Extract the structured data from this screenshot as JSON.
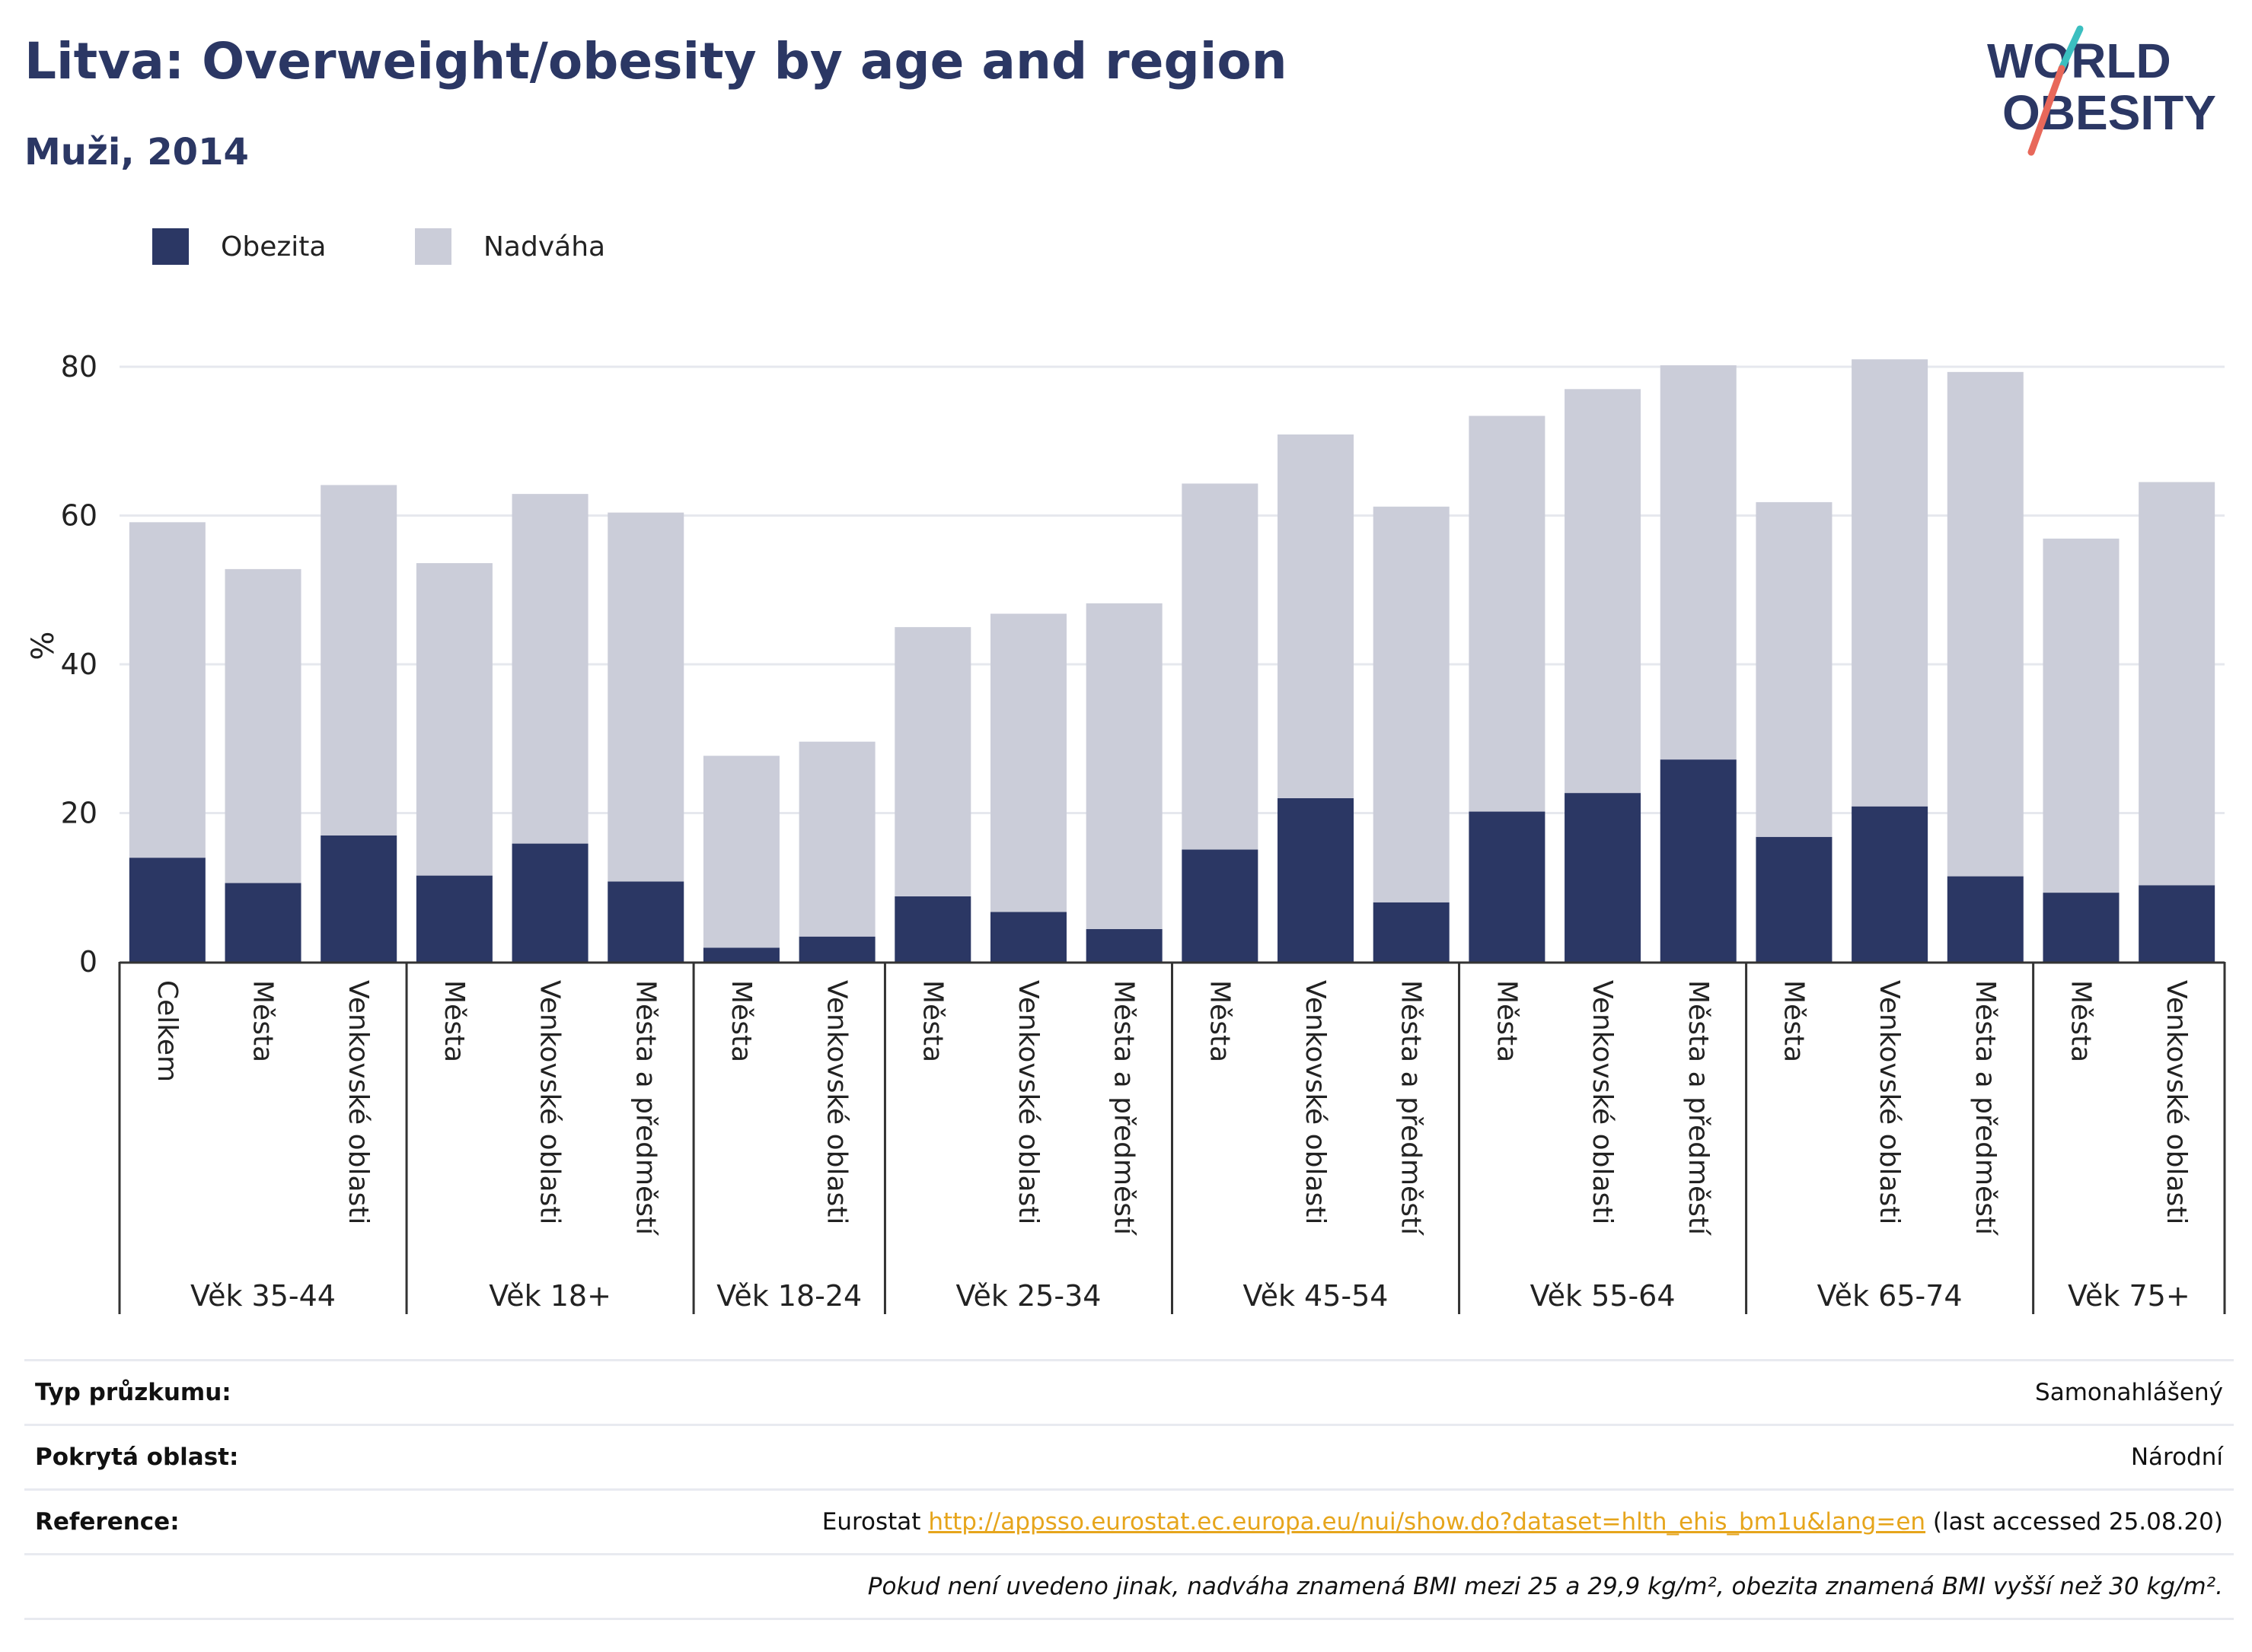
{
  "header": {
    "title": "Litva: Overweight/obesity by age and region",
    "subtitle": "Muži, 2014"
  },
  "logo": {
    "line1": "WORLD",
    "line2": "OBESITY"
  },
  "colors": {
    "obesity": "#2b3764",
    "overweight": "#cbcdd9",
    "brand": "#2b3764",
    "accent_red": "#e8685a",
    "accent_teal": "#3bbfc0",
    "link": "#e6a51c"
  },
  "chart_data": {
    "type": "bar",
    "stacked": true,
    "ylabel": "%",
    "ylim": [
      0,
      85
    ],
    "yticks": [
      0,
      20,
      40,
      60,
      80
    ],
    "grid": true,
    "legend_position": "top-left",
    "series": [
      {
        "name": "Obezita",
        "color": "#2b3764",
        "values": [
          14.0,
          10.6,
          17.0,
          11.6,
          15.9,
          10.8,
          1.9,
          3.4,
          8.8,
          6.7,
          4.4,
          15.1,
          22.0,
          8.0,
          20.2,
          22.7,
          27.2,
          16.8,
          20.9,
          11.5,
          9.3,
          10.3
        ]
      },
      {
        "name": "Nadváha",
        "color": "#cbcdd9",
        "values": [
          45.1,
          42.2,
          47.1,
          42.0,
          47.0,
          49.6,
          25.8,
          26.2,
          36.2,
          40.1,
          43.8,
          49.2,
          48.9,
          53.2,
          53.2,
          54.3,
          53.0,
          45.0,
          60.1,
          67.8,
          47.6,
          54.2
        ]
      }
    ],
    "categories": [
      "Celkem",
      "Města",
      "Venkovské oblasti",
      "Města",
      "Venkovské oblasti",
      "Města a předměstí",
      "Města",
      "Venkovské oblasti",
      "Města",
      "Venkovské oblasti",
      "Města a předměstí",
      "Města",
      "Venkovské oblasti",
      "Města a předměstí",
      "Města",
      "Venkovské oblasti",
      "Města a předměstí",
      "Města",
      "Venkovské oblasti",
      "Města a předměstí",
      "Města",
      "Venkovské oblasti"
    ],
    "groups": [
      {
        "label": "Věk 35-44",
        "count": 3
      },
      {
        "label": "Věk 18+",
        "count": 3
      },
      {
        "label": "Věk 18-24",
        "count": 2
      },
      {
        "label": "Věk 25-34",
        "count": 3
      },
      {
        "label": "Věk 45-54",
        "count": 3
      },
      {
        "label": "Věk 55-64",
        "count": 3
      },
      {
        "label": "Věk 65-74",
        "count": 3
      },
      {
        "label": "Věk 75+",
        "count": 2
      }
    ]
  },
  "info": {
    "survey_type": {
      "label": "Typ průzkumu:",
      "value": "Samonahlášený"
    },
    "coverage": {
      "label": "Pokrytá oblast:",
      "value": "Národní"
    },
    "reference": {
      "label": "Reference:",
      "prefix": "Eurostat",
      "link": "http://appsso.eurostat.ec.europa.eu/nui/show.do?dataset=hlth_ehis_bm1u&lang=en",
      "suffix": "(last accessed 25.08.20)"
    },
    "note": "Pokud není uvedeno jinak, nadváha znamená BMI mezi 25 a 29,9 kg/m², obezita znamená BMI vyšší než 30 kg/m²."
  }
}
